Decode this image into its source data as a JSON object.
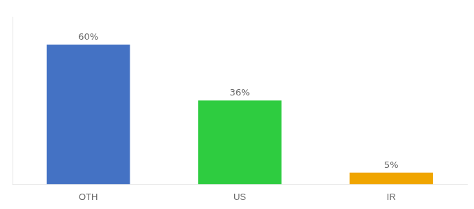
{
  "chart_data": {
    "type": "bar",
    "categories": [
      "OTH",
      "US",
      "IR"
    ],
    "values": [
      60,
      36,
      5
    ],
    "value_labels": [
      "60%",
      "36%",
      "5%"
    ],
    "colors": [
      "#4472c4",
      "#2ecc40",
      "#f0a500"
    ],
    "ylim": [
      0,
      72
    ],
    "data_labels": true,
    "tick_labels": "x",
    "grid": false
  }
}
